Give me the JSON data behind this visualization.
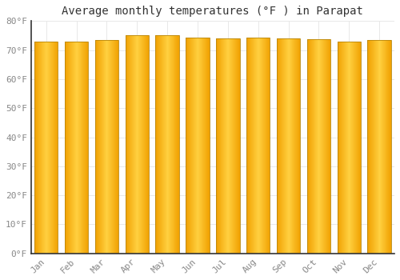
{
  "title": "Average monthly temperatures (°F ) in Parapat",
  "months": [
    "Jan",
    "Feb",
    "Mar",
    "Apr",
    "May",
    "Jun",
    "Jul",
    "Aug",
    "Sep",
    "Oct",
    "Nov",
    "Dec"
  ],
  "values": [
    72.9,
    72.9,
    73.6,
    75.0,
    75.0,
    74.3,
    74.1,
    74.3,
    74.1,
    73.8,
    72.9,
    73.6
  ],
  "ylim": [
    0,
    80
  ],
  "yticks": [
    0,
    10,
    20,
    30,
    40,
    50,
    60,
    70,
    80
  ],
  "bar_color_center": "#FFD040",
  "bar_color_edge": "#F0A000",
  "bar_outline_color": "#B8860B",
  "background_color": "#FFFFFF",
  "grid_color": "#E8E8E8",
  "title_fontsize": 10,
  "tick_fontsize": 8,
  "tick_color": "#888888",
  "title_color": "#333333",
  "font_family": "monospace",
  "bar_width": 0.78
}
